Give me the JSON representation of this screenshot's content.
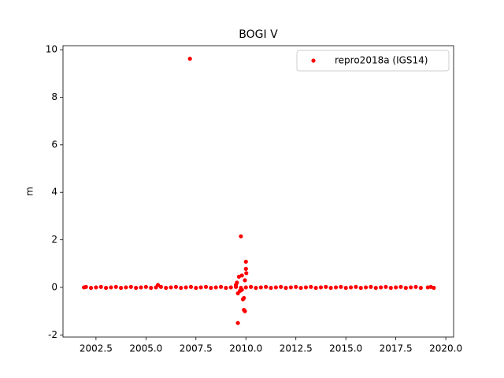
{
  "chart_data": {
    "type": "scatter",
    "title": "BOGI V",
    "ylabel": "m",
    "xlim": [
      2000.85,
      2020.39
    ],
    "ylim": [
      -2.09,
      10.17
    ],
    "xticks": [
      2002.5,
      {
        "value": 2005,
        "label": "2005.0"
      },
      2007.5,
      {
        "value": 2010,
        "label": "2010.0"
      },
      2012.5,
      {
        "value": 2015,
        "label": "2015.0"
      },
      2017.5,
      {
        "value": 2020,
        "label": "2020.0"
      }
    ],
    "yticks": [
      -2,
      0,
      2,
      4,
      6,
      8,
      10
    ],
    "legend": "upper right",
    "x": [
      2001.9,
      2002.0,
      2002.25,
      2002.5,
      2002.75,
      2003.0,
      2003.25,
      2003.5,
      2003.75,
      2004.0,
      2004.25,
      2004.5,
      2004.75,
      2005.0,
      2005.25,
      2005.5,
      2005.75,
      2006.0,
      2006.25,
      2006.5,
      2006.75,
      2007.0,
      2007.25,
      2007.5,
      2007.75,
      2008.0,
      2008.25,
      2008.5,
      2008.75,
      2009.0,
      2009.25,
      2009.5,
      2009.75,
      2010.0,
      2010.25,
      2010.5,
      2010.75,
      2011.0,
      2011.25,
      2011.5,
      2011.75,
      2012.0,
      2012.25,
      2012.5,
      2012.75,
      2013.0,
      2013.25,
      2013.5,
      2013.75,
      2014.0,
      2014.25,
      2014.5,
      2014.75,
      2015.0,
      2015.25,
      2015.5,
      2015.75,
      2016.0,
      2016.25,
      2016.5,
      2016.75,
      2017.0,
      2017.25,
      2017.5,
      2017.75,
      2018.0,
      2018.25,
      2018.5,
      2018.75,
      2019.1,
      2019.25,
      2019.4,
      2007.2,
      2009.75,
      2010.0,
      2010.0,
      2010.02,
      2009.6,
      2009.9,
      2009.95,
      2009.85,
      2009.9,
      2009.6,
      2009.65,
      2009.8,
      2009.55,
      2005.6,
      2009.7,
      2009.95,
      2009.5,
      2009.8
    ],
    "series": [
      {
        "name": "repro2018a (IGS14)",
        "color": "#ff0000",
        "values": [
          0,
          0.02,
          -0.02,
          0,
          0.02,
          -0.02,
          0,
          0.02,
          -0.02,
          0,
          0.02,
          -0.02,
          0,
          0.02,
          -0.02,
          0,
          0.02,
          -0.02,
          0,
          0.02,
          -0.02,
          0,
          0.02,
          -0.02,
          0,
          0.02,
          -0.02,
          0,
          0.02,
          -0.02,
          0,
          0.02,
          -0.02,
          0,
          0.02,
          -0.02,
          0,
          0.02,
          -0.02,
          0,
          0.02,
          -0.02,
          0,
          0.02,
          -0.02,
          0,
          0.02,
          -0.02,
          0,
          0.02,
          -0.02,
          0,
          0.02,
          -0.02,
          0,
          0.02,
          -0.02,
          0,
          0.02,
          -0.02,
          0,
          0.02,
          -0.02,
          0,
          0.02,
          -0.02,
          0,
          0.02,
          -0.02,
          0,
          0.02,
          -0.02,
          9.62,
          2.15,
          1.08,
          0.78,
          0.6,
          -1.5,
          -0.95,
          -1.0,
          -0.5,
          -0.45,
          -0.25,
          0.45,
          0.5,
          0.2,
          0.1,
          -0.15,
          0.3,
          0.1,
          -0.1
        ]
      }
    ]
  }
}
